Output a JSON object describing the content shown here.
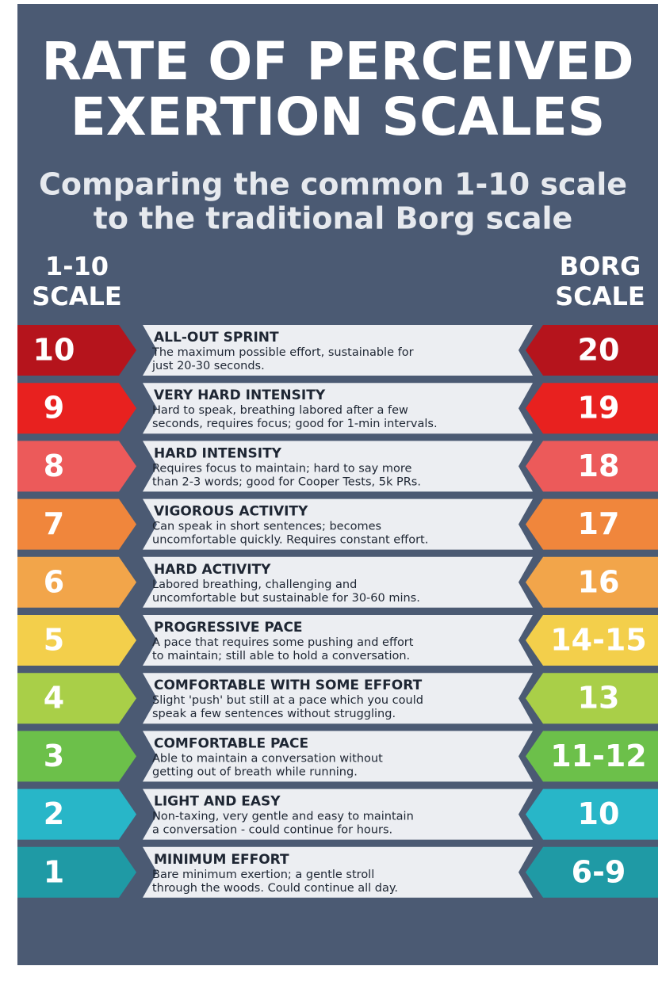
{
  "header": {
    "title": [
      "RATE OF PERCEIVED",
      "EXERTION SCALES"
    ],
    "subtitle": [
      "Comparing the common 1-10 scale",
      "to the traditional Borg scale"
    ],
    "left_heading": [
      "1-10",
      "SCALE"
    ],
    "right_heading": [
      "BORG",
      "SCALE"
    ]
  },
  "rows": [
    {
      "scale": "10",
      "title": "ALL-OUT SPRINT",
      "description": [
        "The maximum possible effort, sustainable for",
        "just 20-30 seconds."
      ],
      "borg": "20",
      "color": "#b5141c"
    },
    {
      "scale": "9",
      "title": "VERY HARD INTENSITY",
      "description": [
        "Hard to speak, breathing labored after a few",
        "seconds, requires focus; good for 1-min intervals."
      ],
      "borg": "19",
      "color": "#e8211f"
    },
    {
      "scale": "8",
      "title": "HARD INTENSITY",
      "description": [
        "Requires focus to maintain; hard to say more",
        "than 2-3 words; good for Cooper Tests, 5k PRs."
      ],
      "borg": "18",
      "color": "#ec5a5a"
    },
    {
      "scale": "7",
      "title": "VIGOROUS ACTIVITY",
      "description": [
        "Can speak in short sentences; becomes",
        "uncomfortable quickly. Requires constant effort."
      ],
      "borg": "17",
      "color": "#f0863c"
    },
    {
      "scale": "6",
      "title": "HARD ACTIVITY",
      "description": [
        "Labored breathing, challenging and",
        "uncomfortable but sustainable for 30-60 mins."
      ],
      "borg": "16",
      "color": "#f2a54a"
    },
    {
      "scale": "5",
      "title": "PROGRESSIVE PACE",
      "description": [
        "A pace that requires some pushing and effort",
        "to maintain; still able to hold a conversation."
      ],
      "borg": "14-15",
      "color": "#f3cf4b"
    },
    {
      "scale": "4",
      "title": "COMFORTABLE WITH SOME EFFORT",
      "description": [
        "Slight 'push' but still at a pace which you could",
        "speak a few sentences without struggling."
      ],
      "borg": "13",
      "color": "#a9cf48"
    },
    {
      "scale": "3",
      "title": "COMFORTABLE PACE",
      "description": [
        "Able to maintain a conversation without",
        "getting out of breath while running."
      ],
      "borg": "11-12",
      "color": "#6cc04a"
    },
    {
      "scale": "2",
      "title": "LIGHT AND EASY",
      "description": [
        "Non-taxing, very gentle and easy to maintain",
        "a conversation - could continue for hours."
      ],
      "borg": "10",
      "color": "#28b6c8"
    },
    {
      "scale": "1",
      "title": "MINIMUM EFFORT",
      "description": [
        "Bare minimum exertion; a gentle stroll",
        "through the woods. Could continue all day."
      ],
      "borg": "6-9",
      "color": "#1f9aa5"
    }
  ]
}
